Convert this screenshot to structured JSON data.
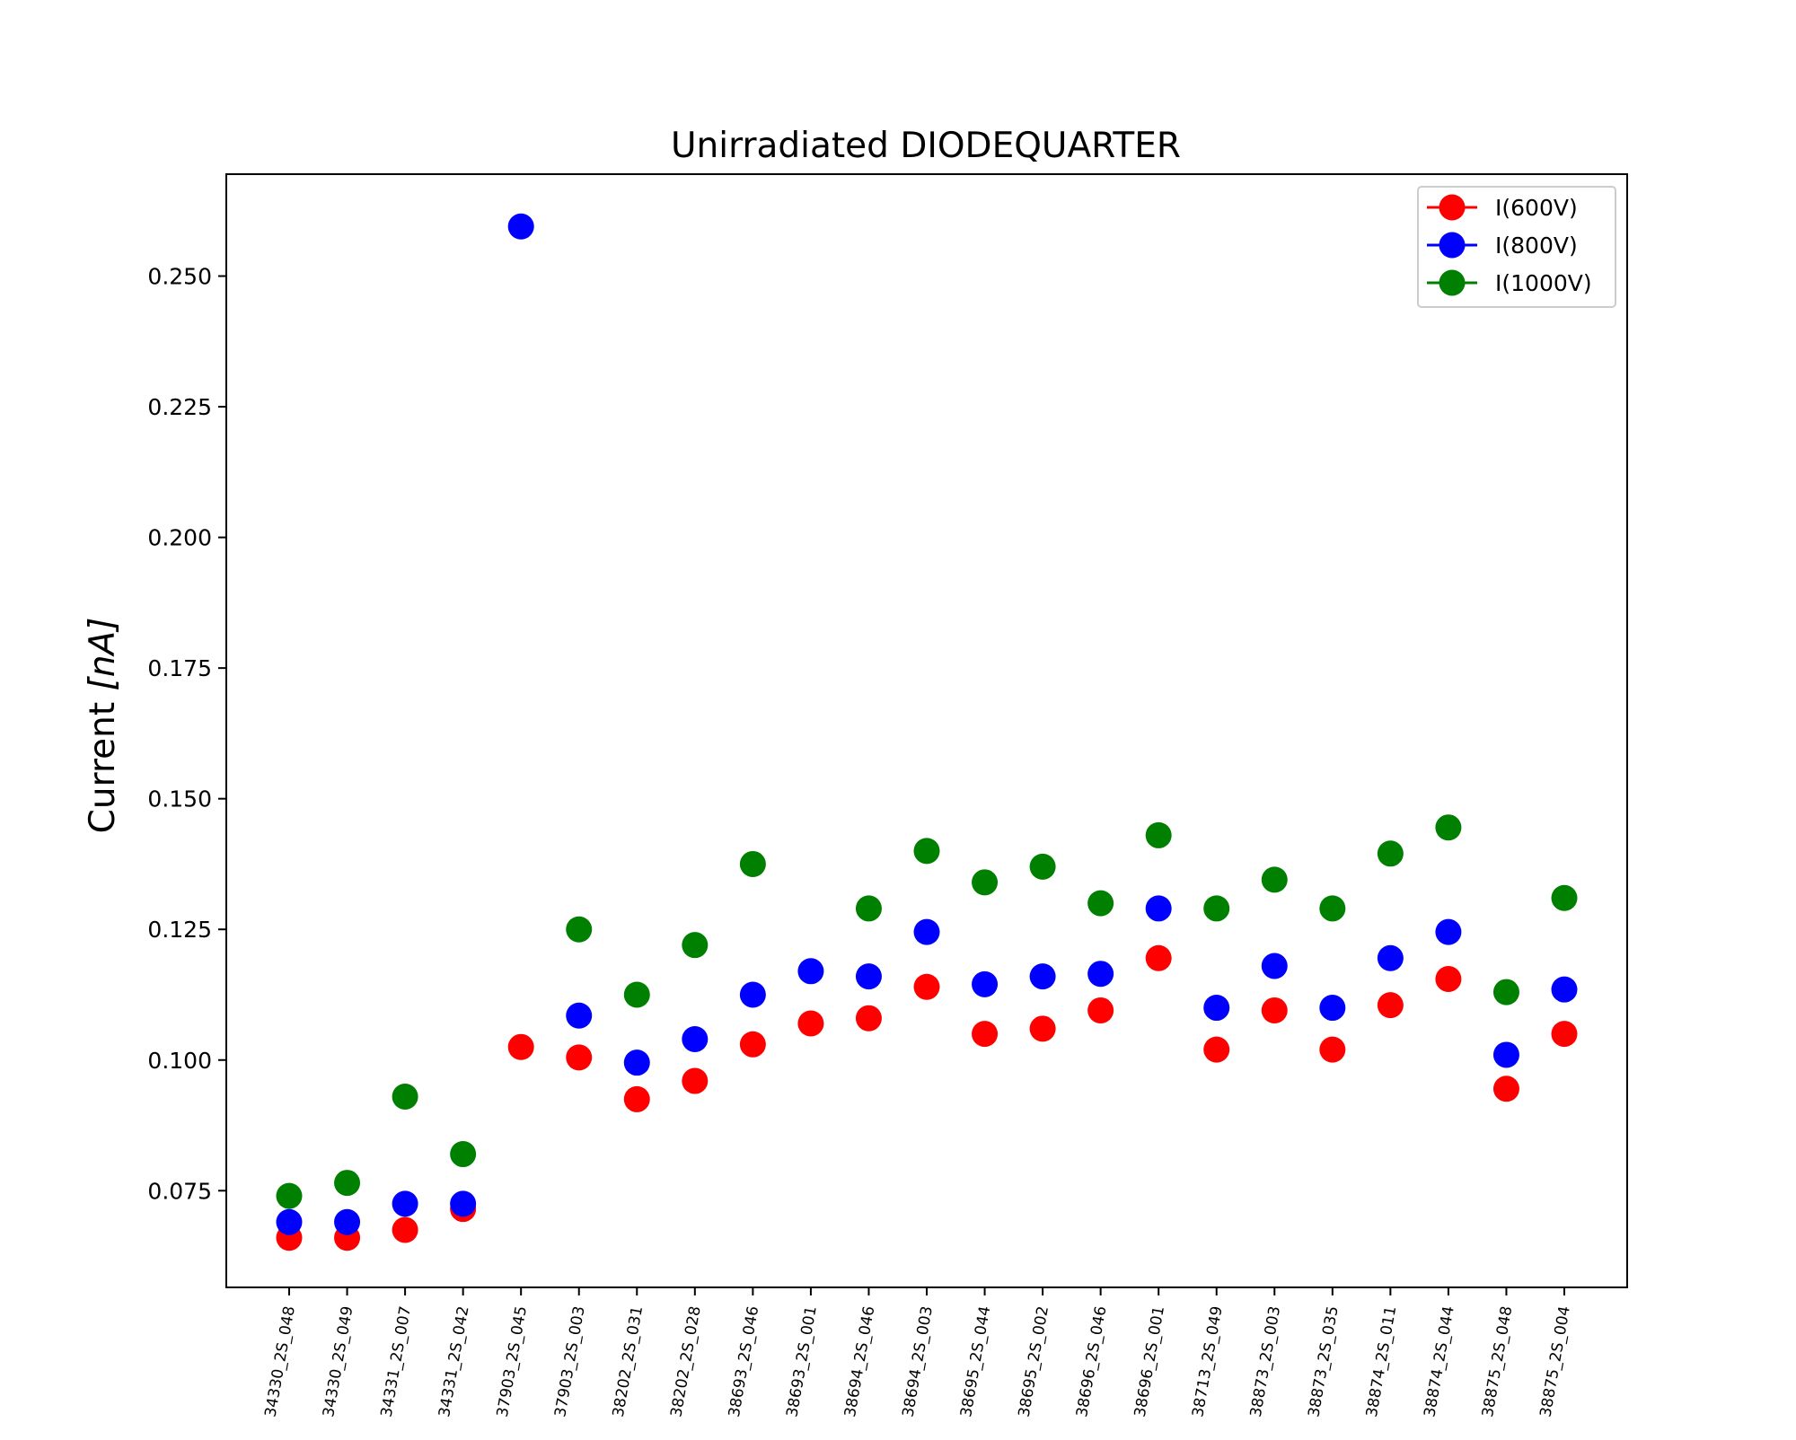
{
  "chart_data": {
    "type": "scatter",
    "title": "Unirradiated DIODEQUARTER",
    "xlabel": "",
    "ylabel": "Current [nA]",
    "ylabel_main": "Current ",
    "ylabel_unit": "[nA]",
    "ylim": [
      0.0565,
      0.2695
    ],
    "y_ticks": [
      0.075,
      0.1,
      0.125,
      0.15,
      0.175,
      0.2,
      0.225,
      0.25
    ],
    "y_tick_labels": [
      "0.075",
      "0.100",
      "0.125",
      "0.150",
      "0.175",
      "0.200",
      "0.225",
      "0.250"
    ],
    "categories": [
      "34330_2S_048",
      "34330_2S_049",
      "34331_2S_007",
      "34331_2S_042",
      "37903_2S_045",
      "37903_2S_003",
      "38202_2S_031",
      "38202_2S_028",
      "38693_2S_046",
      "38693_2S_001",
      "38694_2S_046",
      "38694_2S_003",
      "38695_2S_044",
      "38695_2S_002",
      "38696_2S_046",
      "38696_2S_001",
      "38713_2S_049",
      "38873_2S_003",
      "38873_2S_035",
      "38874_2S_011",
      "38874_2S_044",
      "38875_2S_048",
      "38875_2S_004"
    ],
    "series": [
      {
        "name": "I(600V)",
        "color": "#ff0000",
        "values": [
          0.066,
          0.066,
          0.0675,
          0.0715,
          0.1025,
          0.1005,
          0.0925,
          0.096,
          0.103,
          0.107,
          0.108,
          0.114,
          0.105,
          0.106,
          0.1095,
          0.1195,
          0.102,
          0.1095,
          0.102,
          0.1105,
          0.1155,
          0.0945,
          0.105
        ]
      },
      {
        "name": "I(800V)",
        "color": "#0000ff",
        "values": [
          0.069,
          0.069,
          0.0725,
          0.0725,
          0.2595,
          0.1085,
          0.0995,
          0.104,
          0.1125,
          0.117,
          0.116,
          0.1245,
          0.1145,
          0.116,
          0.1165,
          0.129,
          0.11,
          0.118,
          0.11,
          0.1195,
          0.1245,
          0.101,
          0.1135
        ]
      },
      {
        "name": "I(1000V)",
        "color": "#008000",
        "values": [
          0.074,
          0.0765,
          0.093,
          0.082,
          null,
          0.125,
          0.1125,
          0.122,
          0.1375,
          null,
          0.129,
          0.14,
          0.134,
          0.137,
          0.13,
          0.143,
          0.129,
          0.1345,
          0.129,
          0.1395,
          0.1445,
          0.113,
          0.131
        ]
      }
    ],
    "legend_position": "top-right",
    "grid": false
  }
}
